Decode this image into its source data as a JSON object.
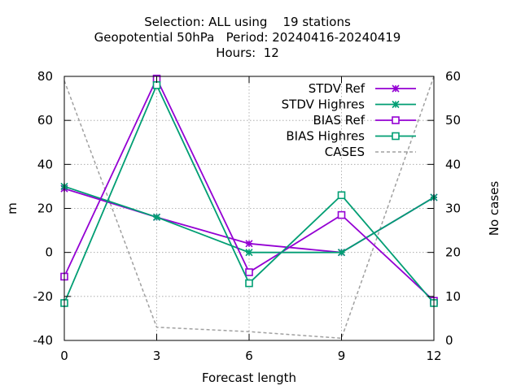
{
  "chart_data": {
    "type": "line",
    "title": [
      "Selection: ALL using    19 stations",
      "Geopotential 50hPa   Period: 20240416-20240419",
      "Hours:  12"
    ],
    "xlabel": "Forecast length",
    "ylabel": "m",
    "y2label": "No cases",
    "x": [
      0,
      3,
      6,
      9,
      12
    ],
    "xticks": [
      "0",
      "3",
      "6",
      "9",
      "12"
    ],
    "xlim": [
      0,
      12
    ],
    "ylim": [
      -40,
      80
    ],
    "yticks": [
      "-40",
      "-20",
      "0",
      "20",
      "40",
      "60",
      "80"
    ],
    "y2lim": [
      0,
      60
    ],
    "y2ticks": [
      "0",
      "10",
      "20",
      "30",
      "40",
      "50",
      "60"
    ],
    "grid": true,
    "legend_position": "top-right",
    "series": [
      {
        "name": "STDV Ref",
        "axis": "y",
        "color": "#9400d3",
        "marker": "cross",
        "dash": "solid",
        "values": [
          29,
          16,
          4,
          0,
          25
        ]
      },
      {
        "name": "STDV Highres",
        "axis": "y",
        "color": "#009e73",
        "marker": "cross",
        "dash": "solid",
        "values": [
          30,
          16,
          0,
          0,
          25
        ]
      },
      {
        "name": "BIAS Ref",
        "axis": "y",
        "color": "#9400d3",
        "marker": "square",
        "dash": "solid",
        "values": [
          -11,
          79,
          -9,
          17,
          -22
        ]
      },
      {
        "name": "BIAS Highres",
        "axis": "y",
        "color": "#009e73",
        "marker": "square",
        "dash": "solid",
        "values": [
          -23,
          76,
          -14,
          26,
          -23
        ]
      },
      {
        "name": "CASES",
        "axis": "y2",
        "color": "#a0a0a0",
        "marker": "none",
        "dash": "dashed",
        "values": [
          59,
          3,
          2,
          0.5,
          60
        ]
      }
    ]
  }
}
